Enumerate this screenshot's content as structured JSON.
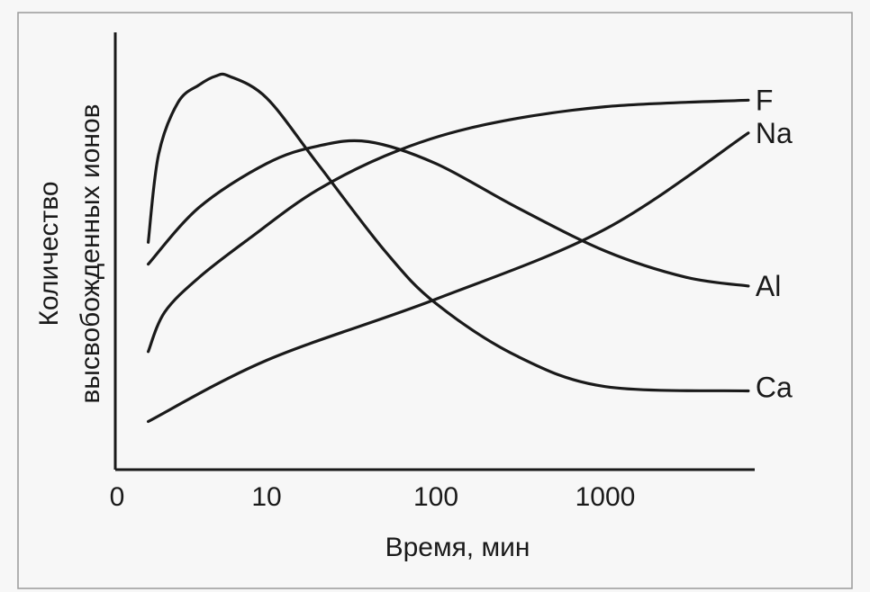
{
  "chart_data": {
    "type": "line",
    "xlabel": "Время, мин",
    "ylabel": [
      "Количество",
      "высвобожденных ионов"
    ],
    "x_scale": "log",
    "x_ticks": [
      "0",
      "10",
      "100",
      "1000"
    ],
    "y_ticks": [],
    "series": [
      {
        "name": "F",
        "x": [
          2,
          2.5,
          4,
          8,
          20,
          60,
          200,
          1000,
          7000
        ],
        "y": [
          0.27,
          0.36,
          0.44,
          0.53,
          0.64,
          0.73,
          0.79,
          0.83,
          0.845
        ]
      },
      {
        "name": "Na",
        "x": [
          2,
          10,
          100,
          1000,
          7000
        ],
        "y": [
          0.11,
          0.25,
          0.39,
          0.55,
          0.77
        ]
      },
      {
        "name": "Al",
        "x": [
          2,
          4,
          10,
          20,
          40,
          100,
          300,
          1000,
          3000,
          7000
        ],
        "y": [
          0.47,
          0.6,
          0.7,
          0.74,
          0.75,
          0.7,
          0.6,
          0.5,
          0.44,
          0.42
        ]
      },
      {
        "name": "Ca",
        "x": [
          2,
          2.3,
          3,
          4,
          5,
          6,
          10,
          20,
          50,
          100,
          300,
          1000,
          7000
        ],
        "y": [
          0.52,
          0.72,
          0.84,
          0.88,
          0.9,
          0.9,
          0.85,
          0.7,
          0.5,
          0.38,
          0.26,
          0.19,
          0.18
        ]
      }
    ]
  }
}
